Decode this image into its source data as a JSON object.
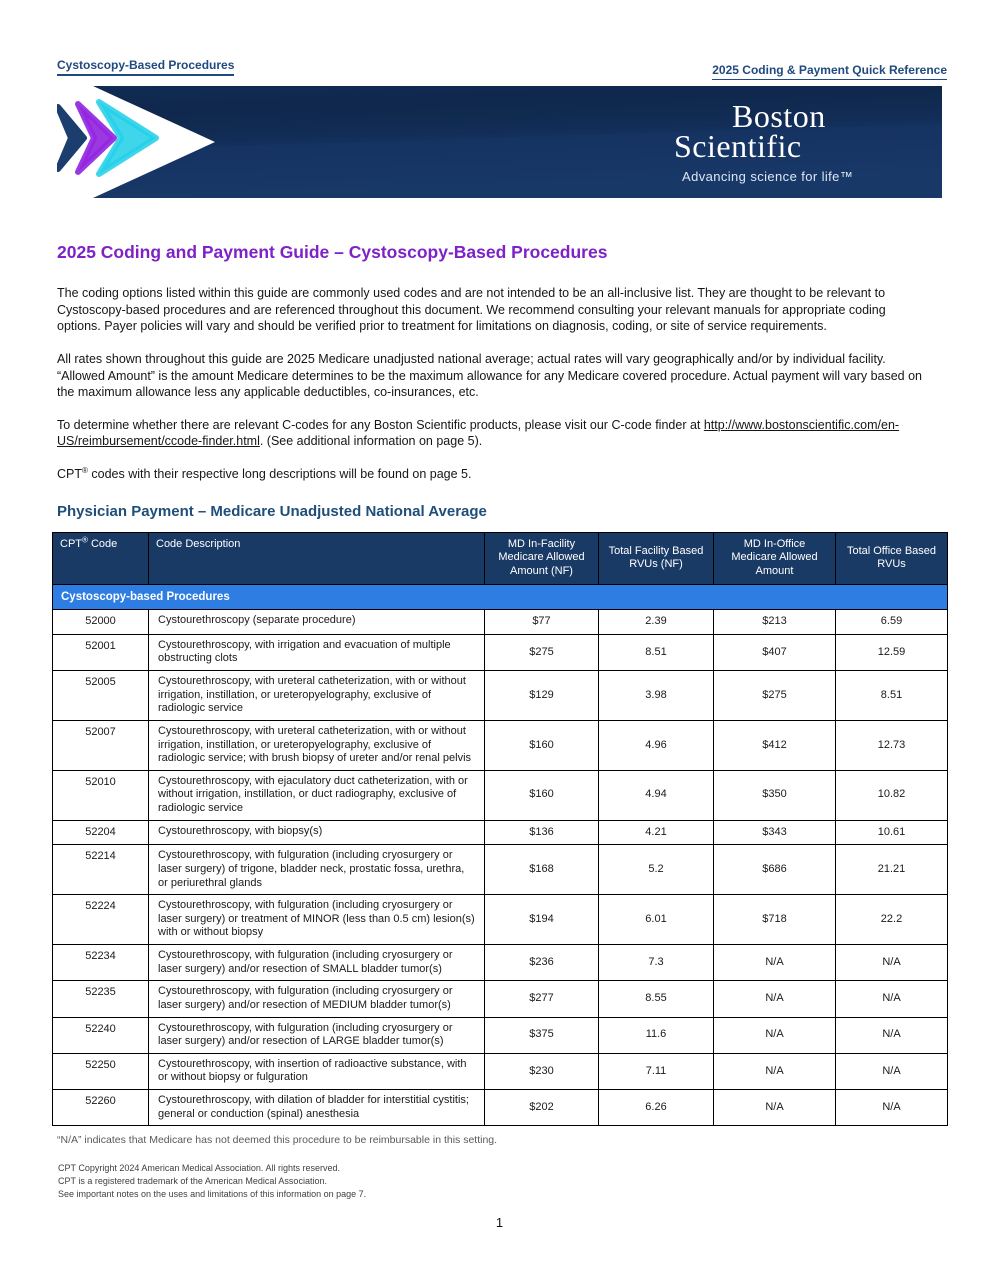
{
  "header": {
    "left_label": "Cystoscopy-Based Procedures",
    "right_label": "2025 Coding & Payment Quick Reference"
  },
  "banner": {
    "logo_line1": "Boston",
    "logo_line2": "Scientific",
    "tagline": "Advancing science for life™"
  },
  "title": "2025 Coding and Payment Guide – Cystoscopy-Based Procedures",
  "paragraphs": {
    "intro": "The coding options listed within this guide are commonly used codes and are not intended to be an all-inclusive list. They are thought to be relevant to Cystoscopy-based procedures and are referenced throughout this document. We recommend consulting your relevant manuals for appropriate coding options. Payer policies will vary and should be verified prior to treatment for limitations on diagnosis, coding, or site of service requirements.",
    "rates": "All rates shown throughout this guide are 2025 Medicare unadjusted national average; actual rates will vary geographically and/or by individual facility. “Allowed Amount” is the amount Medicare determines to be the maximum allowance for any Medicare covered procedure. Actual payment will vary based on the maximum allowance less any applicable deductibles, co-insurances, etc.",
    "ccode_before": "To determine whether there are relevant C-codes for any Boston Scientific products, please visit our C-code finder at ",
    "ccode_link": "http://www.bostonscientific.com/en-US/reimbursement/ccode-finder.html",
    "ccode_after": ". (See additional information on page 5).",
    "cpt_prefix": "CPT",
    "cpt_reg": "®",
    "cpt_suffix": " codes with their respective long descriptions will be found on page 5."
  },
  "section_heading": "Physician Payment – Medicare Unadjusted National Average",
  "table": {
    "header": {
      "cpt_prefix": "CPT",
      "cpt_reg": "®",
      "cpt_suffix": " Code",
      "description": "Code Description",
      "facility_amount": "MD In-Facility Medicare Allowed Amount (NF)",
      "facility_rvu": "Total Facility Based RVUs (NF)",
      "office_amount": "MD In-Office Medicare Allowed Amount",
      "office_rvu": "Total Office Based RVUs"
    },
    "group_header": "Cystoscopy-based Procedures",
    "rows": [
      {
        "code": "52000",
        "description": "Cystourethroscopy (separate procedure)",
        "facility_amount": "$77",
        "facility_rvu": "2.39",
        "office_amount": "$213",
        "office_rvu": "6.59"
      },
      {
        "code": "52001",
        "description": "Cystourethroscopy, with irrigation and evacuation of multiple obstructing clots",
        "facility_amount": "$275",
        "facility_rvu": "8.51",
        "office_amount": "$407",
        "office_rvu": "12.59"
      },
      {
        "code": "52005",
        "description": "Cystourethroscopy, with ureteral catheterization, with or without irrigation, instillation, or ureteropyelography, exclusive of radiologic service",
        "facility_amount": "$129",
        "facility_rvu": "3.98",
        "office_amount": "$275",
        "office_rvu": "8.51"
      },
      {
        "code": "52007",
        "description": "Cystourethroscopy, with ureteral catheterization, with or without irrigation, instillation, or ureteropyelography, exclusive of radiologic service; with brush biopsy of ureter and/or renal pelvis",
        "facility_amount": "$160",
        "facility_rvu": "4.96",
        "office_amount": "$412",
        "office_rvu": "12.73"
      },
      {
        "code": "52010",
        "description": "Cystourethroscopy, with ejaculatory duct catheterization, with or without irrigation, instillation, or duct radiography, exclusive of radiologic service",
        "facility_amount": "$160",
        "facility_rvu": "4.94",
        "office_amount": "$350",
        "office_rvu": "10.82"
      },
      {
        "code": "52204",
        "description": "Cystourethroscopy, with biopsy(s)",
        "facility_amount": "$136",
        "facility_rvu": "4.21",
        "office_amount": "$343",
        "office_rvu": "10.61"
      },
      {
        "code": "52214",
        "description": "Cystourethroscopy, with fulguration (including cryosurgery or laser surgery) of trigone, bladder neck, prostatic fossa, urethra, or periurethral glands",
        "facility_amount": "$168",
        "facility_rvu": "5.2",
        "office_amount": "$686",
        "office_rvu": "21.21"
      },
      {
        "code": "52224",
        "description": "Cystourethroscopy, with fulguration (including cryosurgery or laser surgery) or treatment of MINOR (less than 0.5 cm) lesion(s) with or without biopsy",
        "facility_amount": "$194",
        "facility_rvu": "6.01",
        "office_amount": "$718",
        "office_rvu": "22.2"
      },
      {
        "code": "52234",
        "description": "Cystourethroscopy, with fulguration (including cryosurgery or laser surgery) and/or resection of SMALL bladder tumor(s)",
        "facility_amount": "$236",
        "facility_rvu": "7.3",
        "office_amount": "N/A",
        "office_rvu": "N/A"
      },
      {
        "code": "52235",
        "description": "Cystourethroscopy, with fulguration (including cryosurgery or laser surgery) and/or resection of MEDIUM bladder tumor(s)",
        "facility_amount": "$277",
        "facility_rvu": "8.55",
        "office_amount": "N/A",
        "office_rvu": "N/A"
      },
      {
        "code": "52240",
        "description": "Cystourethroscopy, with fulguration (including cryosurgery or laser surgery) and/or resection of LARGE bladder tumor(s)",
        "facility_amount": "$375",
        "facility_rvu": "11.6",
        "office_amount": "N/A",
        "office_rvu": "N/A"
      },
      {
        "code": "52250",
        "description": "Cystourethroscopy, with insertion of radioactive substance, with or without biopsy or fulguration",
        "facility_amount": "$230",
        "facility_rvu": "7.11",
        "office_amount": "N/A",
        "office_rvu": "N/A"
      },
      {
        "code": "52260",
        "description": "Cystourethroscopy, with dilation of bladder for interstitial cystitis; general or conduction (spinal) anesthesia",
        "facility_amount": "$202",
        "facility_rvu": "6.26",
        "office_amount": "N/A",
        "office_rvu": "N/A"
      }
    ]
  },
  "footnote": "“N/A” indicates that Medicare has not deemed this procedure to be reimbursable in this setting.",
  "footer_notes": [
    "CPT Copyright 2024 American Medical Association. All rights reserved.",
    "CPT is a registered trademark of the American Medical Association.",
    "See important notes on the uses and limitations of this information on page 7."
  ],
  "page_number": "1",
  "colors": {
    "title_purple": "#7e22c8",
    "heading_navy": "#1f4e79",
    "band_navy_top": "#10294e",
    "band_navy_bottom": "#1c3f72",
    "table_header_navy": "#1a3a66",
    "group_row_blue": "#2e7de2",
    "chevron_navy": "#1c3e6e",
    "chevron_purple": "#9327e0",
    "chevron_cyan": "#24d0e8"
  }
}
